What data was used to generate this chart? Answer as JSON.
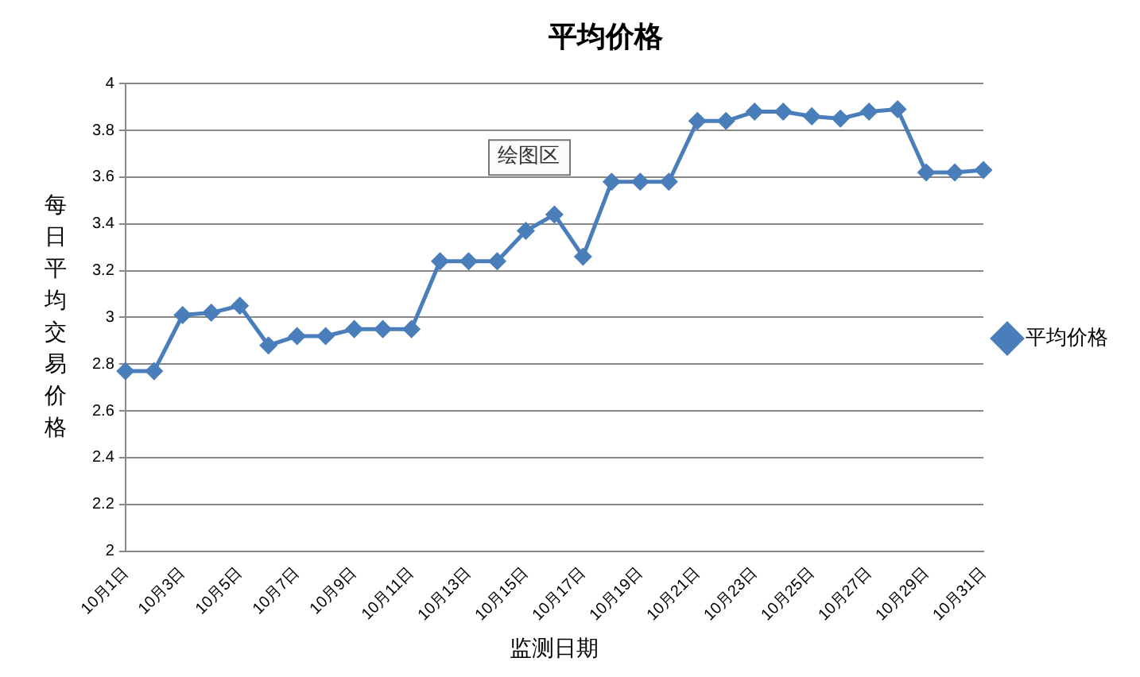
{
  "chart_data": {
    "type": "line",
    "title": "平均价格",
    "xlabel": "监测日期",
    "ylabel": "每日平均交易价格",
    "categories": [
      "10月1日",
      null,
      "10月3日",
      null,
      "10月5日",
      null,
      "10月7日",
      null,
      "10月9日",
      null,
      "10月11日",
      null,
      "10月13日",
      null,
      "10月15日",
      null,
      "10月17日",
      null,
      "10月19日",
      null,
      "10月21日",
      null,
      "10月23日",
      null,
      "10月25日",
      null,
      "10月27日",
      null,
      "10月29日",
      null,
      "10月31日"
    ],
    "series": [
      {
        "name": "平均价格",
        "color": "#4a7ebb",
        "values": [
          2.77,
          2.77,
          3.01,
          3.02,
          3.05,
          2.88,
          2.92,
          2.92,
          2.95,
          2.95,
          2.95,
          3.24,
          3.24,
          3.24,
          3.37,
          3.44,
          3.26,
          3.58,
          3.58,
          3.58,
          3.84,
          3.84,
          3.88,
          3.88,
          3.86,
          3.85,
          3.88,
          3.89,
          3.62,
          3.62,
          3.63
        ]
      }
    ],
    "ylim": [
      2,
      4
    ],
    "yticks": [
      2,
      2.2,
      2.4,
      2.6,
      2.8,
      3,
      3.2,
      3.4,
      3.6,
      3.8,
      4
    ],
    "grid": "y",
    "legend": "right",
    "marker": "diamond",
    "line_style": "solid",
    "annotations": [
      "绘图区"
    ]
  }
}
